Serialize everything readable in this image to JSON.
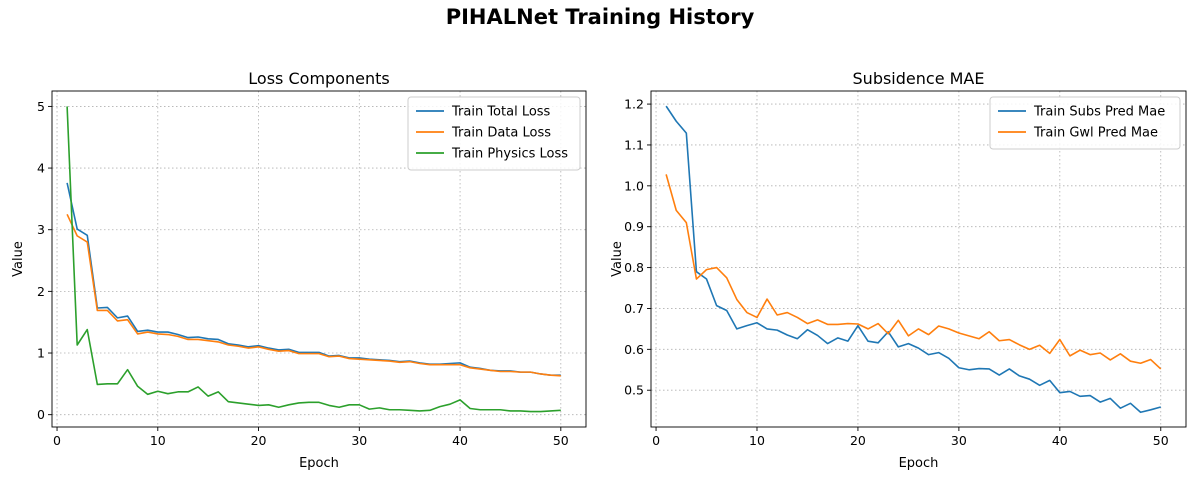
{
  "figure": {
    "title": "PIHALNet Training History"
  },
  "chart_data": [
    {
      "type": "line",
      "title": "Loss Components",
      "xlabel": "Epoch",
      "ylabel": "Value",
      "xlim": [
        -0.5,
        52.5
      ],
      "ylim": [
        -0.2,
        5.25
      ],
      "xticks": [
        0,
        10,
        20,
        30,
        40,
        50
      ],
      "yticks": [
        0,
        1,
        2,
        3,
        4,
        5
      ],
      "grid": true,
      "legend": "top-right",
      "x": [
        1,
        2,
        3,
        4,
        5,
        6,
        7,
        8,
        9,
        10,
        11,
        12,
        13,
        14,
        15,
        16,
        17,
        18,
        19,
        20,
        21,
        22,
        23,
        24,
        25,
        26,
        27,
        28,
        29,
        30,
        31,
        32,
        33,
        34,
        35,
        36,
        37,
        38,
        39,
        40,
        41,
        42,
        43,
        44,
        45,
        46,
        47,
        48,
        49,
        50
      ],
      "series": [
        {
          "name": "Train Total Loss",
          "color": "#1f77b4",
          "values": [
            3.76,
            3.01,
            2.91,
            1.73,
            1.74,
            1.57,
            1.6,
            1.35,
            1.37,
            1.34,
            1.34,
            1.3,
            1.25,
            1.26,
            1.23,
            1.22,
            1.15,
            1.13,
            1.1,
            1.12,
            1.08,
            1.05,
            1.06,
            1.01,
            1.01,
            1.01,
            0.95,
            0.96,
            0.92,
            0.92,
            0.9,
            0.89,
            0.88,
            0.86,
            0.87,
            0.84,
            0.82,
            0.82,
            0.83,
            0.84,
            0.77,
            0.75,
            0.72,
            0.71,
            0.71,
            0.69,
            0.69,
            0.66,
            0.64,
            0.64
          ]
        },
        {
          "name": "Train Data Loss",
          "color": "#ff7f0e",
          "values": [
            3.25,
            2.9,
            2.8,
            1.69,
            1.69,
            1.52,
            1.54,
            1.31,
            1.34,
            1.31,
            1.3,
            1.27,
            1.22,
            1.22,
            1.2,
            1.18,
            1.13,
            1.11,
            1.08,
            1.1,
            1.06,
            1.03,
            1.04,
            0.99,
            0.99,
            0.99,
            0.94,
            0.95,
            0.91,
            0.9,
            0.89,
            0.88,
            0.87,
            0.85,
            0.86,
            0.83,
            0.81,
            0.81,
            0.81,
            0.81,
            0.76,
            0.74,
            0.72,
            0.7,
            0.7,
            0.69,
            0.69,
            0.66,
            0.64,
            0.63
          ]
        },
        {
          "name": "Train Physics Loss",
          "color": "#2ca02c",
          "values": [
            5.0,
            1.13,
            1.38,
            0.49,
            0.5,
            0.5,
            0.73,
            0.46,
            0.33,
            0.38,
            0.34,
            0.37,
            0.37,
            0.45,
            0.3,
            0.37,
            0.21,
            0.19,
            0.17,
            0.15,
            0.16,
            0.12,
            0.16,
            0.19,
            0.2,
            0.2,
            0.15,
            0.12,
            0.16,
            0.16,
            0.09,
            0.11,
            0.08,
            0.08,
            0.07,
            0.06,
            0.07,
            0.13,
            0.17,
            0.24,
            0.1,
            0.08,
            0.08,
            0.08,
            0.06,
            0.06,
            0.05,
            0.05,
            0.06,
            0.07
          ]
        }
      ]
    },
    {
      "type": "line",
      "title": "Subsidence MAE",
      "xlabel": "Epoch",
      "ylabel": "Value",
      "xlim": [
        -0.5,
        52.5
      ],
      "ylim": [
        0.41,
        1.232
      ],
      "xticks": [
        0,
        10,
        20,
        30,
        40,
        50
      ],
      "yticks": [
        0.5,
        0.6,
        0.7,
        0.8,
        0.9,
        1.0,
        1.1,
        1.2
      ],
      "yticklabels": [
        "0.5",
        "0.6",
        "0.7",
        "0.8",
        "0.9",
        "1.0",
        "1.1",
        "1.2"
      ],
      "grid": true,
      "legend": "top-right",
      "x": [
        1,
        2,
        3,
        4,
        5,
        6,
        7,
        8,
        9,
        10,
        11,
        12,
        13,
        14,
        15,
        16,
        17,
        18,
        19,
        20,
        21,
        22,
        23,
        24,
        25,
        26,
        27,
        28,
        29,
        30,
        31,
        32,
        33,
        34,
        35,
        36,
        37,
        38,
        39,
        40,
        41,
        42,
        43,
        44,
        45,
        46,
        47,
        48,
        49,
        50
      ],
      "series": [
        {
          "name": "Train Subs Pred Mae",
          "color": "#1f77b4",
          "values": [
            1.195,
            1.158,
            1.129,
            0.79,
            0.772,
            0.707,
            0.695,
            0.65,
            0.658,
            0.665,
            0.65,
            0.647,
            0.635,
            0.626,
            0.648,
            0.634,
            0.614,
            0.628,
            0.62,
            0.658,
            0.62,
            0.616,
            0.643,
            0.606,
            0.614,
            0.603,
            0.587,
            0.592,
            0.578,
            0.555,
            0.55,
            0.553,
            0.552,
            0.537,
            0.552,
            0.535,
            0.527,
            0.512,
            0.524,
            0.494,
            0.497,
            0.485,
            0.487,
            0.471,
            0.48,
            0.456,
            0.468,
            0.446,
            0.452,
            0.459
          ]
        },
        {
          "name": "Train Gwl Pred Mae",
          "color": "#ff7f0e",
          "values": [
            1.028,
            0.94,
            0.91,
            0.772,
            0.795,
            0.8,
            0.775,
            0.722,
            0.69,
            0.678,
            0.723,
            0.684,
            0.69,
            0.678,
            0.663,
            0.672,
            0.661,
            0.661,
            0.663,
            0.662,
            0.65,
            0.663,
            0.638,
            0.671,
            0.633,
            0.65,
            0.636,
            0.657,
            0.65,
            0.64,
            0.633,
            0.626,
            0.643,
            0.621,
            0.624,
            0.611,
            0.6,
            0.61,
            0.59,
            0.624,
            0.584,
            0.598,
            0.587,
            0.591,
            0.574,
            0.589,
            0.571,
            0.566,
            0.575,
            0.552
          ]
        }
      ]
    }
  ]
}
